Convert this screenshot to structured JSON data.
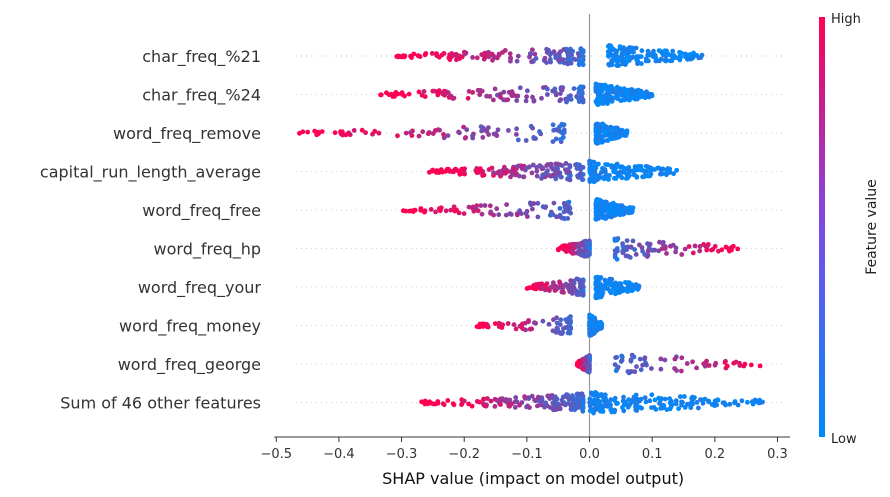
{
  "chart_data": {
    "type": "scatter",
    "subtype": "shap-beeswarm",
    "xlabel": "SHAP value (impact on model output)",
    "xlim": [
      -0.51,
      0.32
    ],
    "xticks": [
      -0.5,
      -0.4,
      -0.3,
      -0.2,
      -0.1,
      0.0,
      0.1,
      0.2,
      0.3
    ],
    "xtick_labels": [
      "−0.5",
      "−0.4",
      "−0.3",
      "−0.2",
      "−0.1",
      "0.0",
      "0.1",
      "0.2",
      "0.3"
    ],
    "colorbar": {
      "title": "Feature value",
      "high_label": "High",
      "low_label": "Low",
      "low_color": "#008bfb",
      "high_color": "#ff0052"
    },
    "features": [
      {
        "name": "char_freq_%21",
        "neg_range": [
          -0.31,
          -0.01
        ],
        "pos_range": [
          0.03,
          0.18
        ],
        "neg_n": 130,
        "pos_n": 150
      },
      {
        "name": "char_freq_%24",
        "neg_range": [
          -0.35,
          -0.01
        ],
        "pos_range": [
          0.01,
          0.1
        ],
        "neg_n": 110,
        "pos_n": 170
      },
      {
        "name": "word_freq_remove",
        "neg_range": [
          -0.48,
          -0.04
        ],
        "pos_range": [
          0.01,
          0.06
        ],
        "neg_n": 90,
        "pos_n": 160
      },
      {
        "name": "capital_run_length_average",
        "neg_range": [
          -0.26,
          -0.01
        ],
        "pos_range": [
          0.0,
          0.14
        ],
        "neg_n": 160,
        "pos_n": 130
      },
      {
        "name": "word_freq_free",
        "neg_range": [
          -0.3,
          -0.03
        ],
        "pos_range": [
          0.01,
          0.07
        ],
        "neg_n": 90,
        "pos_n": 150
      },
      {
        "name": "word_freq_hp",
        "neg_range": [
          -0.05,
          0.0
        ],
        "pos_range": [
          0.04,
          0.24
        ],
        "neg_n": 110,
        "pos_n": 80
      },
      {
        "name": "word_freq_your",
        "neg_range": [
          -0.1,
          -0.01
        ],
        "pos_range": [
          0.01,
          0.08
        ],
        "neg_n": 100,
        "pos_n": 110
      },
      {
        "name": "word_freq_money",
        "neg_range": [
          -0.18,
          -0.03
        ],
        "pos_range": [
          0.0,
          0.02
        ],
        "neg_n": 70,
        "pos_n": 140
      },
      {
        "name": "word_freq_george",
        "neg_range": [
          -0.02,
          0.0
        ],
        "pos_range": [
          0.04,
          0.28
        ],
        "neg_n": 140,
        "pos_n": 60
      },
      {
        "name": "Sum of 46 other features",
        "neg_range": [
          -0.27,
          -0.01
        ],
        "pos_range": [
          0.0,
          0.28
        ],
        "neg_n": 170,
        "pos_n": 180
      }
    ]
  }
}
